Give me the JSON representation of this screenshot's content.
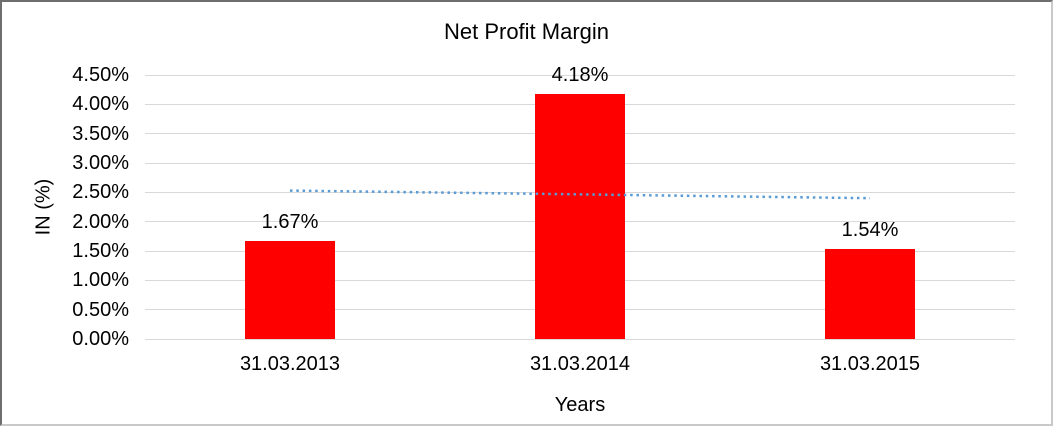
{
  "chart_data": {
    "type": "bar",
    "title": "Net Profit Margin",
    "xlabel": "Years",
    "ylabel": "IN (%)",
    "categories": [
      "31.03.2013",
      "31.03.2014",
      "31.03.2015"
    ],
    "values": [
      1.67,
      4.18,
      1.54
    ],
    "data_labels": [
      "1.67%",
      "4.18%",
      "1.54%"
    ],
    "ylim": [
      0,
      4.5
    ],
    "ytick_labels": [
      "0.00%",
      "0.50%",
      "1.00%",
      "1.50%",
      "2.00%",
      "2.50%",
      "3.00%",
      "3.50%",
      "4.00%",
      "4.50%"
    ],
    "grid": true,
    "legend": "none",
    "bar_color": "#FF0000",
    "gridline_color": "#D9D9D9",
    "trendline": {
      "type": "linear",
      "style": "dotted",
      "color": "#5B9BD5",
      "start_value": 2.53,
      "end_value": 2.4
    }
  }
}
